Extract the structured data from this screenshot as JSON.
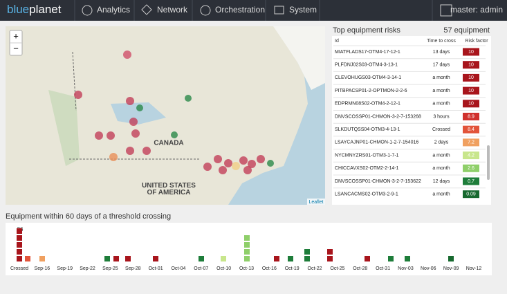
{
  "nav": {
    "brand_a": "blue",
    "brand_b": "planet",
    "items": [
      "Analytics",
      "Network",
      "Orchestration",
      "System"
    ],
    "user": "master: admin"
  },
  "map": {
    "zoom_in": "+",
    "zoom_out": "−",
    "labels": [
      "CANADA",
      "UNITED STATES\nOF AMERICA"
    ],
    "attribution": "Leaflet"
  },
  "risks": {
    "title": "Top equipment risks",
    "count": "57 equipment",
    "columns": [
      "Id",
      "Time to cross",
      "Risk factor"
    ],
    "rows": [
      [
        "MIATFLADS17-OTM4-17-12-1",
        "13 days",
        "10"
      ],
      [
        "PLFDNJ02S03-OTM4-3-13-1",
        "17 days",
        "10"
      ],
      [
        "CLEVOHUGS03-OTM4-3-14-1",
        "a month",
        "10"
      ],
      [
        "PITBPACSP01-2-OPTMON-2-2-6",
        "a month",
        "10"
      ],
      [
        "EDPRMN08S02-OTM4-2-12-1",
        "a month",
        "10"
      ],
      [
        "DNVSCOSSP01-CHMON-3-2-7-153268",
        "3 hours",
        "8.9"
      ],
      [
        "SLKDUTQSS04-OTM3-4-13-1",
        "Crossed",
        "8.4"
      ],
      [
        "LSAYCAJNP01-CHMON-1-2-7-154016",
        "2 days",
        "7.2"
      ],
      [
        "NYCMNYZRS01-OTM3-1-7-1",
        "a month",
        "4.2"
      ],
      [
        "CHICCAVXS02-OTM2-2-14-1",
        "a month",
        "2.6"
      ],
      [
        "DNVSCOSSP01-CHMON-3-2-7-153622",
        "12 days",
        "0.7"
      ],
      [
        "LSANCACMS02-OTM3-2-9-1",
        "a month",
        "0.09"
      ]
    ],
    "risk_colors": [
      "#a8151c",
      "#a8151c",
      "#a8151c",
      "#a8151c",
      "#a8151c",
      "#d0312d",
      "#e2543a",
      "#f0a060",
      "#c8e68c",
      "#8fcf6a",
      "#1e7d3a",
      "#17692f"
    ]
  },
  "timeline": {
    "title": "Equipment within 60 days of a threshold crossing",
    "top_label": "36",
    "ticks": [
      "Crossed",
      "Sep-16",
      "Sep-19",
      "Sep-22",
      "Sep-25",
      "Sep-28",
      "Oct-01",
      "Oct-04",
      "Oct-07",
      "Oct-10",
      "Oct-13",
      "Oct-16",
      "Oct-19",
      "Oct-22",
      "Oct-25",
      "Oct-28",
      "Oct-31",
      "Nov-03",
      "Nov-06",
      "Nov-09",
      "Nov-12"
    ]
  }
}
